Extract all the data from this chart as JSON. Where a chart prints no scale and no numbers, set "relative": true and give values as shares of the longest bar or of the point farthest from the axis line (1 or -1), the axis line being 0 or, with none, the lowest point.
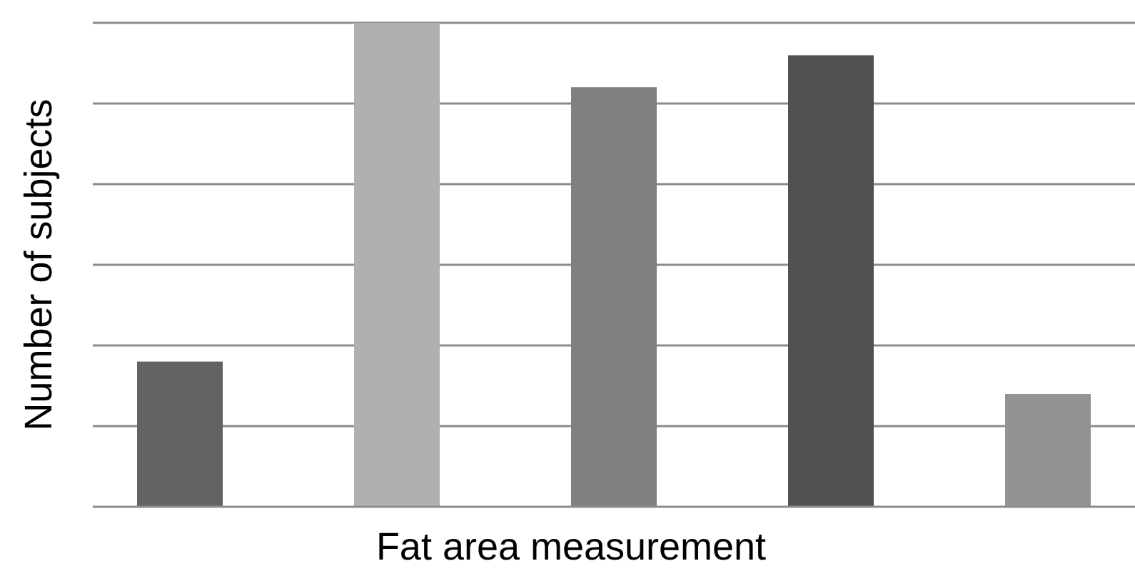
{
  "chart_data": {
    "type": "bar",
    "xlabel": "Fat area measurement",
    "ylabel": "Number of subjects",
    "relative": true,
    "grid": "y",
    "categories": [
      null,
      null,
      null,
      null,
      null
    ],
    "values": [
      0.3,
      1,
      0.867,
      0.933,
      0.233
    ],
    "colors": [
      "#636363",
      "#b0b0b0",
      "#808080",
      "#505050",
      "#939393"
    ]
  }
}
